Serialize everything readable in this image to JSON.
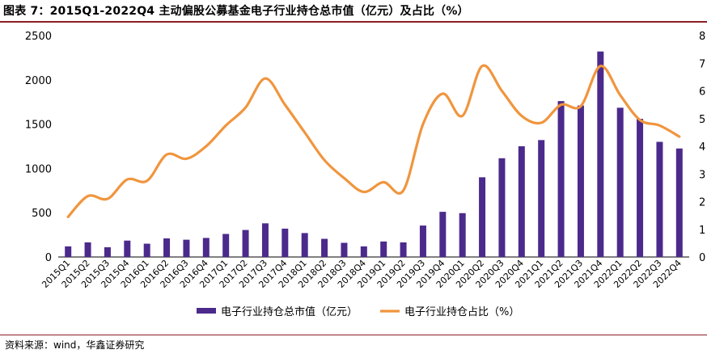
{
  "header": {
    "title": "图表 7：2015Q1-2022Q4 主动偏股公募基金电子行业持仓总市值（亿元）及占比（%）"
  },
  "footer": {
    "source": "资料来源：wind，华鑫证券研究"
  },
  "chart_data": {
    "type": "bar",
    "title": "图表 7：2015Q1-2022Q4 主动偏股公募基金电子行业持仓总市值（亿元）及占比（%）",
    "categories": [
      "2015Q1",
      "2015Q2",
      "2015Q3",
      "2015Q4",
      "2016Q1",
      "2016Q2",
      "2016Q3",
      "2016Q4",
      "2017Q1",
      "2017Q2",
      "2017Q3",
      "2017Q4",
      "2018Q1",
      "2018Q2",
      "2018Q3",
      "2018Q4",
      "2019Q1",
      "2019Q2",
      "2019Q3",
      "2019Q4",
      "2020Q1",
      "2020Q2",
      "2020Q3",
      "2020Q4",
      "2021Q1",
      "2021Q2",
      "2021Q3",
      "2021Q4",
      "2022Q1",
      "2022Q2",
      "2022Q3",
      "2022Q4"
    ],
    "series": [
      {
        "name": "电子行业持仓总市值（亿元）",
        "type": "bar",
        "axis": "left",
        "color": "#4b2a8c",
        "values": [
          120,
          165,
          110,
          185,
          150,
          210,
          195,
          215,
          260,
          305,
          380,
          320,
          270,
          205,
          160,
          120,
          175,
          165,
          355,
          510,
          495,
          900,
          1115,
          1250,
          1320,
          1760,
          1710,
          2320,
          1685,
          1560,
          1300,
          1225
        ]
      },
      {
        "name": "电子行业持仓占比（%）",
        "type": "line",
        "axis": "right",
        "color": "#f0953e",
        "values": [
          1.45,
          2.2,
          2.1,
          2.8,
          2.75,
          3.7,
          3.55,
          4.0,
          4.75,
          5.4,
          6.45,
          5.5,
          4.5,
          3.5,
          2.85,
          2.35,
          2.7,
          2.4,
          4.8,
          5.9,
          5.1,
          6.9,
          6.0,
          5.1,
          4.85,
          5.5,
          5.45,
          6.9,
          5.85,
          4.95,
          4.75,
          4.35
        ]
      }
    ],
    "y_left": {
      "ylim": [
        0,
        2500
      ],
      "ticks": [
        0,
        500,
        1000,
        1500,
        2000,
        2500
      ]
    },
    "y_right": {
      "ylim": [
        0,
        8
      ],
      "ticks": [
        0,
        1,
        2,
        3,
        4,
        5,
        6,
        7,
        8
      ]
    },
    "grid": false,
    "legend_position": "bottom"
  }
}
